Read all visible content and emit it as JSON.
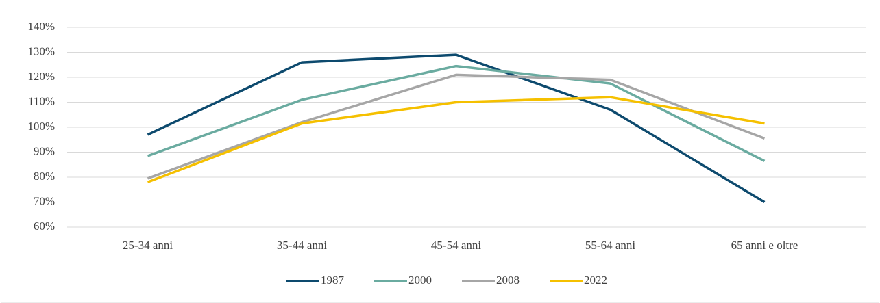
{
  "chart_data": {
    "type": "line",
    "categories": [
      "25-34 anni",
      "35-44 anni",
      "45-54 anni",
      "55-64 anni",
      "65 anni e oltre"
    ],
    "series": [
      {
        "name": "1987",
        "color": "#0d4a6e",
        "values": [
          97,
          126,
          129,
          107,
          70
        ]
      },
      {
        "name": "2000",
        "color": "#6aaba0",
        "values": [
          88.5,
          111,
          124.5,
          117.5,
          86.5
        ]
      },
      {
        "name": "2008",
        "color": "#a6a6a6",
        "values": [
          79.5,
          102,
          121,
          119,
          95.5
        ]
      },
      {
        "name": "2022",
        "color": "#f5c000",
        "values": [
          78,
          101.5,
          110,
          112,
          101.5
        ]
      }
    ],
    "ylim": [
      60,
      140
    ],
    "yticks": [
      {
        "value": 60,
        "label": "60%"
      },
      {
        "value": 70,
        "label": "70%"
      },
      {
        "value": 80,
        "label": "80%"
      },
      {
        "value": 90,
        "label": "90%"
      },
      {
        "value": 100,
        "label": "100%"
      },
      {
        "value": 110,
        "label": "110%"
      },
      {
        "value": 120,
        "label": "120%"
      },
      {
        "value": 130,
        "label": "130%"
      },
      {
        "value": 140,
        "label": "140%"
      }
    ],
    "grid": true,
    "legend": "bottom"
  }
}
